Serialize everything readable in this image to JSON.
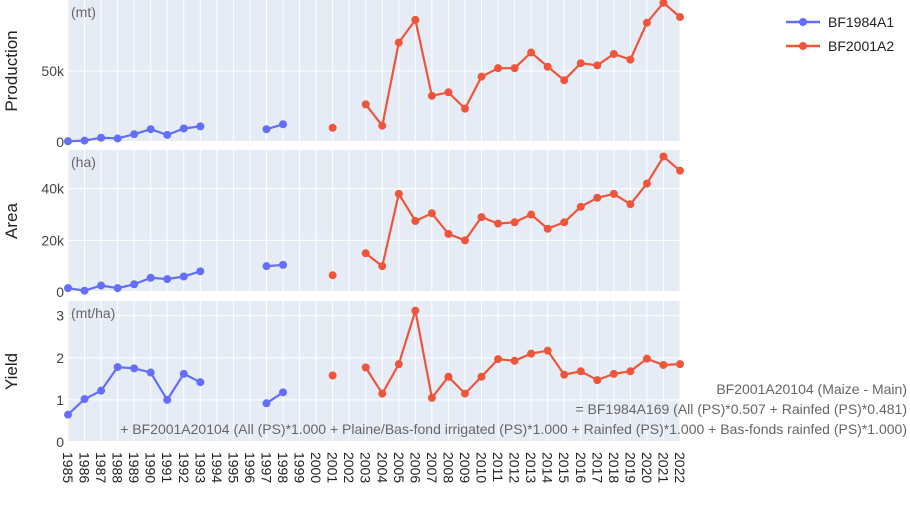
{
  "chart_data": {
    "type": "line",
    "x_categories": [
      "1985",
      "1986",
      "1987",
      "1988",
      "1989",
      "1990",
      "1991",
      "1992",
      "1993",
      "1994",
      "1995",
      "1996",
      "1997",
      "1998",
      "1999",
      "2000",
      "2001",
      "2002",
      "2003",
      "2004",
      "2005",
      "2006",
      "2007",
      "2008",
      "2009",
      "2010",
      "2011",
      "2012",
      "2013",
      "2014",
      "2015",
      "2016",
      "2017",
      "2018",
      "2019",
      "2020",
      "2021",
      "2022"
    ],
    "legend": {
      "placement": "top-right",
      "entries": [
        {
          "name": "BF1984A1",
          "color": "#636efa"
        },
        {
          "name": "BF2001A2",
          "color": "#ef553b"
        }
      ]
    },
    "panels": [
      {
        "ylabel": "Production",
        "unit": "(mt)",
        "ylim": [
          0,
          100000
        ],
        "yticks": [
          0,
          50000
        ],
        "yticklabels": [
          "0",
          "50k"
        ],
        "series": [
          {
            "name": "BF1984A1",
            "x": [
              "1985",
              "1986",
              "1987",
              "1988",
              "1989",
              "1990",
              "1991",
              "1992",
              "1993",
              "1997",
              "1998"
            ],
            "segments": [
              [
                0,
                1,
                2,
                3,
                4,
                5,
                6,
                7,
                8
              ],
              [
                9,
                10
              ]
            ],
            "y": [
              500,
              1000,
              3000,
              2500,
              5500,
              9000,
              5000,
              9500,
              11000,
              9000,
              12500
            ]
          },
          {
            "name": "BF2001A2",
            "x": [
              "2001",
              "2003",
              "2004",
              "2005",
              "2006",
              "2007",
              "2008",
              "2009",
              "2010",
              "2011",
              "2012",
              "2013",
              "2014",
              "2015",
              "2016",
              "2017",
              "2018",
              "2019",
              "2020",
              "2021",
              "2022"
            ],
            "segments": [
              [
                0
              ],
              [
                1,
                2,
                3,
                4,
                5,
                6,
                7,
                8,
                9,
                10,
                11,
                12,
                13,
                14,
                15,
                16,
                17,
                18,
                19,
                20
              ]
            ],
            "y": [
              10000,
              26500,
              11500,
              70000,
              86000,
              32500,
              35000,
              23500,
              46000,
              52000,
              52000,
              63000,
              53000,
              43500,
              55500,
              54000,
              62000,
              58000,
              84000,
              98000,
              88000
            ]
          }
        ]
      },
      {
        "ylabel": "Area",
        "unit": "(ha)",
        "ylim": [
          0,
          55000
        ],
        "yticks": [
          0,
          20000,
          40000
        ],
        "yticklabels": [
          "0",
          "20k",
          "40k"
        ],
        "series": [
          {
            "name": "BF1984A1",
            "x": [
              "1985",
              "1986",
              "1987",
              "1988",
              "1989",
              "1990",
              "1991",
              "1992",
              "1993",
              "1997",
              "1998"
            ],
            "segments": [
              [
                0,
                1,
                2,
                3,
                4,
                5,
                6,
                7,
                8
              ],
              [
                9,
                10
              ]
            ],
            "y": [
              1500,
              500,
              2500,
              1500,
              3000,
              5500,
              5000,
              6000,
              8000,
              10000,
              10500
            ]
          },
          {
            "name": "BF2001A2",
            "x": [
              "2001",
              "2003",
              "2004",
              "2005",
              "2006",
              "2007",
              "2008",
              "2009",
              "2010",
              "2011",
              "2012",
              "2013",
              "2014",
              "2015",
              "2016",
              "2017",
              "2018",
              "2019",
              "2020",
              "2021",
              "2022"
            ],
            "segments": [
              [
                0
              ],
              [
                1,
                2,
                3,
                4,
                5,
                6,
                7,
                8,
                9,
                10,
                11,
                12,
                13,
                14,
                15,
                16,
                17,
                18,
                19,
                20
              ]
            ],
            "y": [
              6500,
              15000,
              10000,
              38000,
              27500,
              30500,
              22500,
              20000,
              29000,
              26500,
              27000,
              30000,
              24500,
              27000,
              33000,
              36500,
              38000,
              34000,
              42000,
              52500,
              47000
            ]
          }
        ]
      },
      {
        "ylabel": "Yield",
        "unit": "(mt/ha)",
        "ylim": [
          0,
          3.35
        ],
        "yticks": [
          0,
          1,
          2,
          3
        ],
        "yticklabels": [
          "0",
          "1",
          "2",
          "3"
        ],
        "series": [
          {
            "name": "BF1984A1",
            "x": [
              "1985",
              "1986",
              "1987",
              "1988",
              "1989",
              "1990",
              "1991",
              "1992",
              "1993",
              "1997",
              "1998"
            ],
            "segments": [
              [
                0,
                1,
                2,
                3,
                4,
                5,
                6,
                7,
                8
              ],
              [
                9,
                10
              ]
            ],
            "y": [
              0.65,
              1.02,
              1.22,
              1.78,
              1.75,
              1.65,
              1.0,
              1.62,
              1.42,
              0.92,
              1.18
            ]
          },
          {
            "name": "BF2001A2",
            "x": [
              "2001",
              "2003",
              "2004",
              "2005",
              "2006",
              "2007",
              "2008",
              "2009",
              "2010",
              "2011",
              "2012",
              "2013",
              "2014",
              "2015",
              "2016",
              "2017",
              "2018",
              "2019",
              "2020",
              "2021",
              "2022"
            ],
            "segments": [
              [
                0
              ],
              [
                1,
                2,
                3,
                4,
                5,
                6,
                7,
                8,
                9,
                10,
                11,
                12,
                13,
                14,
                15,
                16,
                17,
                18,
                19,
                20
              ]
            ],
            "y": [
              1.58,
              1.77,
              1.15,
              1.85,
              3.12,
              1.05,
              1.55,
              1.15,
              1.55,
              1.97,
              1.93,
              2.1,
              2.17,
              1.6,
              1.68,
              1.47,
              1.62,
              1.68,
              1.98,
              1.83,
              1.85
            ]
          }
        ]
      }
    ],
    "annotation_lines": [
      "BF2001A20104 (Maize - Main)",
      "= BF1984A169 (All (PS)*0.507 + Rainfed (PS)*0.481)",
      "+ BF2001A20104 (All (PS)*1.000 + Plaine/Bas-fond irrigated (PS)*1.000 + Rainfed (PS)*1.000 + Bas-fonds rainfed (PS)*1.000)"
    ],
    "colors": {
      "plot_bg": "#e5ecf6",
      "grid": "#ffffff",
      "text": "#444444",
      "unit_text": "#666666"
    }
  }
}
